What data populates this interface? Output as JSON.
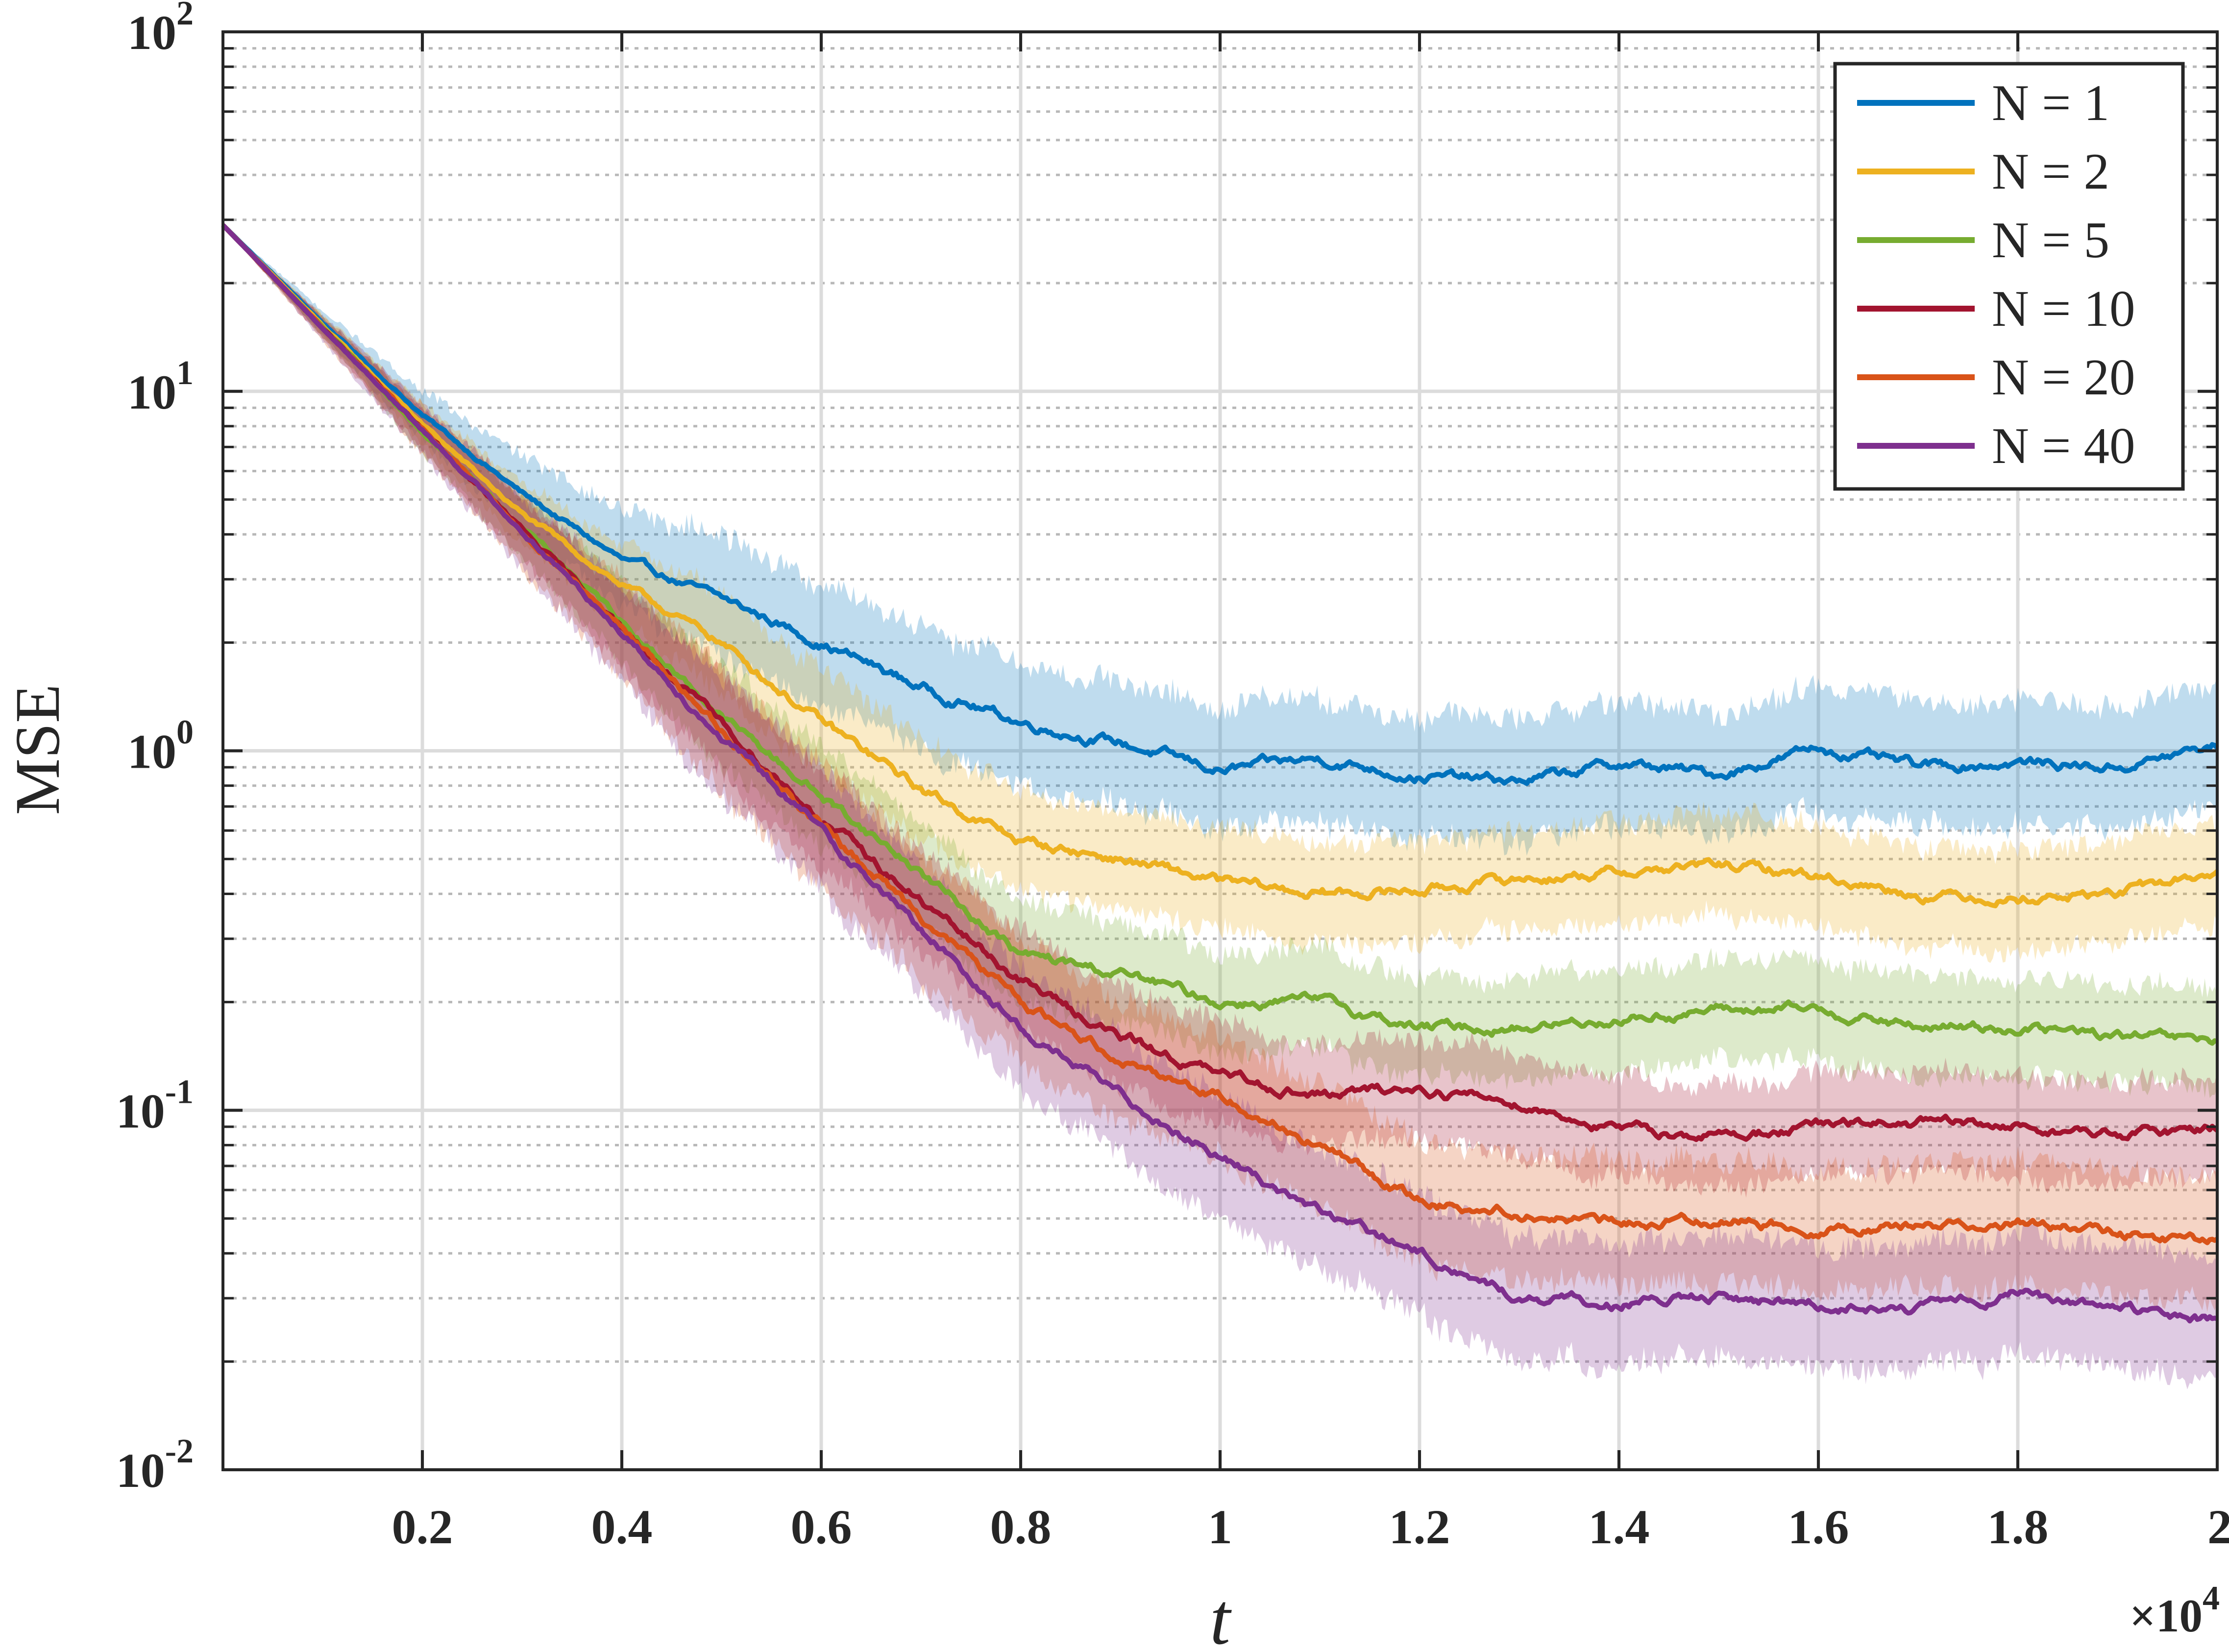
{
  "chart_data": {
    "type": "line",
    "title": "",
    "xlabel": "t",
    "ylabel": "MSE",
    "x_exponent_label": "×10",
    "x_exponent_power": "4",
    "x_scale_multiplier": 10000,
    "xlim": [
      0,
      2
    ],
    "ylim": [
      0.01,
      100
    ],
    "yscale": "log",
    "grid": "on (major and minor)",
    "legend_position": "top-right",
    "x_ticks": [
      {
        "value": 0.2,
        "label": "0.2"
      },
      {
        "value": 0.4,
        "label": "0.4"
      },
      {
        "value": 0.6,
        "label": "0.6"
      },
      {
        "value": 0.8,
        "label": "0.8"
      },
      {
        "value": 1.0,
        "label": "1"
      },
      {
        "value": 1.2,
        "label": "1.2"
      },
      {
        "value": 1.4,
        "label": "1.4"
      },
      {
        "value": 1.6,
        "label": "1.6"
      },
      {
        "value": 1.8,
        "label": "1.8"
      },
      {
        "value": 2.0,
        "label": "2"
      }
    ],
    "y_ticks": [
      {
        "value": 0.01,
        "base": "10",
        "exp": "-2"
      },
      {
        "value": 0.1,
        "base": "10",
        "exp": "-1"
      },
      {
        "value": 1,
        "base": "10",
        "exp": "0"
      },
      {
        "value": 10,
        "base": "10",
        "exp": "1"
      },
      {
        "value": 100,
        "base": "10",
        "exp": "2"
      }
    ],
    "x": [
      0,
      0.1,
      0.2,
      0.3,
      0.4,
      0.5,
      0.6,
      0.7,
      0.8,
      0.9,
      1.0,
      1.1,
      1.2,
      1.3,
      1.4,
      1.5,
      1.6,
      1.7,
      1.8,
      1.9,
      2.0
    ],
    "series": [
      {
        "name": "N = 1",
        "color": "#0072bd",
        "values": [
          29,
          15.5,
          8.6,
          5.2,
          3.4,
          2.65,
          2.0,
          1.5,
          1.2,
          1.05,
          0.88,
          0.95,
          0.85,
          0.82,
          0.92,
          0.86,
          1.02,
          0.9,
          0.93,
          0.9,
          1.03
        ],
        "band": 0.17
      },
      {
        "name": "N = 2",
        "color": "#edb120",
        "values": [
          29,
          15.2,
          8.1,
          4.55,
          2.9,
          2.0,
          1.2,
          0.78,
          0.56,
          0.5,
          0.43,
          0.4,
          0.41,
          0.44,
          0.46,
          0.48,
          0.45,
          0.4,
          0.39,
          0.4,
          0.46
        ],
        "band": 0.14
      },
      {
        "name": "N = 5",
        "color": "#77ac30",
        "values": [
          29,
          15.0,
          7.8,
          4.2,
          2.3,
          1.25,
          0.75,
          0.46,
          0.27,
          0.24,
          0.2,
          0.2,
          0.17,
          0.17,
          0.18,
          0.19,
          0.19,
          0.17,
          0.17,
          0.16,
          0.155
        ],
        "band": 0.14
      },
      {
        "name": "N = 10",
        "color": "#a2142f",
        "values": [
          29,
          15.0,
          7.8,
          4.1,
          2.2,
          1.18,
          0.65,
          0.38,
          0.23,
          0.16,
          0.125,
          0.11,
          0.115,
          0.105,
          0.088,
          0.085,
          0.09,
          0.092,
          0.09,
          0.085,
          0.09
        ],
        "band": 0.14
      },
      {
        "name": "N = 20",
        "color": "#d95319",
        "values": [
          29,
          15.0,
          7.8,
          4.1,
          2.2,
          1.15,
          0.62,
          0.35,
          0.2,
          0.14,
          0.11,
          0.08,
          0.056,
          0.052,
          0.048,
          0.05,
          0.047,
          0.048,
          0.049,
          0.045,
          0.043
        ],
        "band": 0.17
      },
      {
        "name": "N = 40",
        "color": "#7e2f8e",
        "values": [
          29,
          15.0,
          7.8,
          4.1,
          2.15,
          1.1,
          0.6,
          0.32,
          0.17,
          0.11,
          0.075,
          0.052,
          0.04,
          0.03,
          0.029,
          0.03,
          0.029,
          0.028,
          0.031,
          0.028,
          0.026
        ],
        "band": 0.17
      }
    ]
  }
}
